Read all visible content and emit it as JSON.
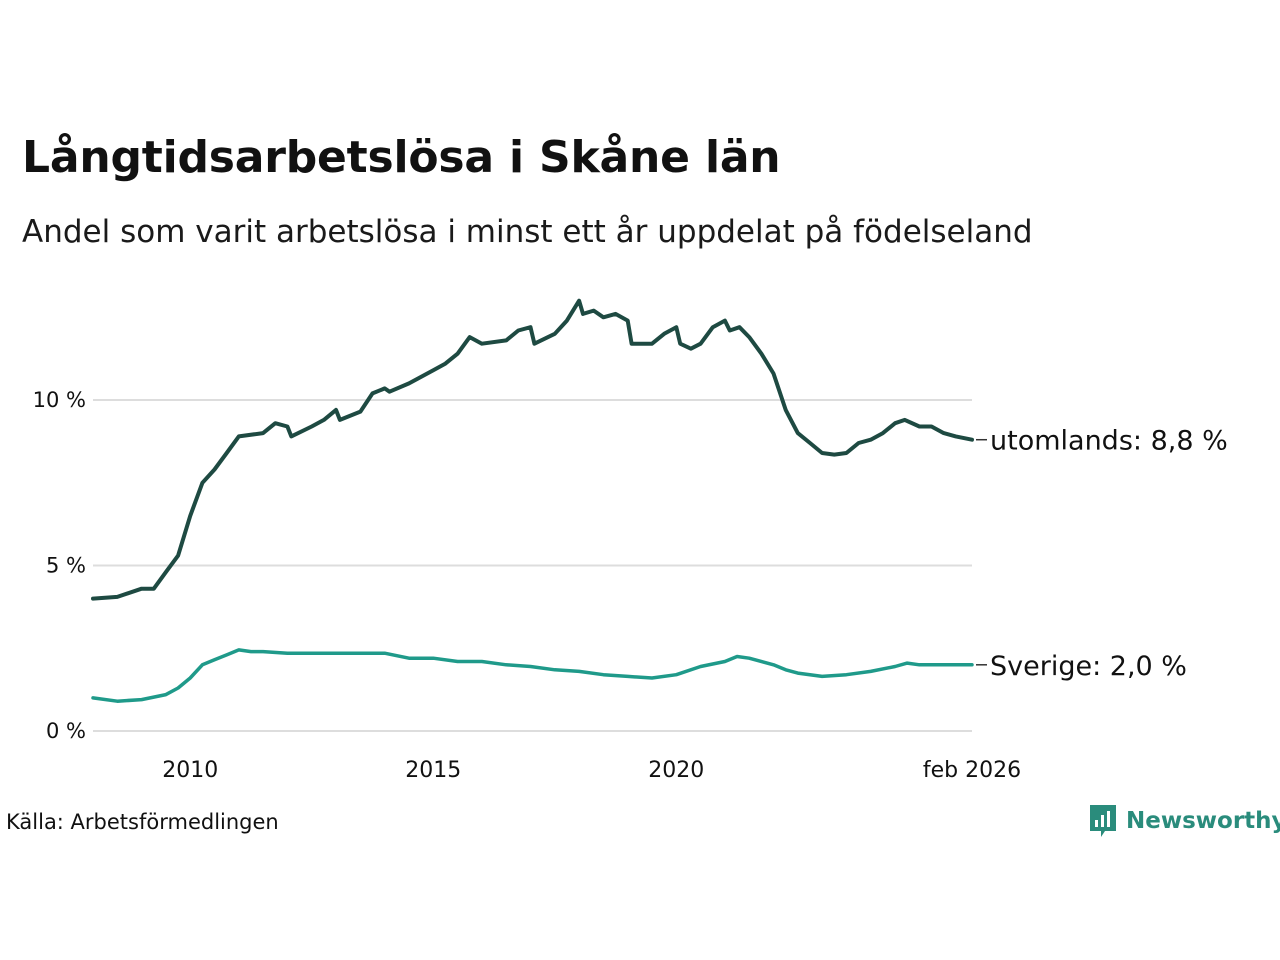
{
  "colors": {
    "abroad": "#1e4a42",
    "sweden": "#1f9a8a",
    "grid": "#dddddd",
    "text": "#111111",
    "brand": "#2a8c7c"
  },
  "icons": {
    "brand": "newsworthy-logo-icon"
  },
  "footer": {
    "source": "Källa: Arbetsförmedlingen",
    "brand": "Newsworthy"
  },
  "chart_data": {
    "type": "line",
    "title": "Långtidsarbetslösa i Skåne län",
    "subtitle": "Andel som varit arbetslösa i minst ett år uppdelat på födelseland",
    "xlabel": "",
    "ylabel": "",
    "x_range": [
      2008.0,
      2026.083
    ],
    "ylim": [
      0,
      13
    ],
    "y_ticks": [
      {
        "value": 0,
        "label": "0 %"
      },
      {
        "value": 5,
        "label": "5 %"
      },
      {
        "value": 10,
        "label": "10 %"
      }
    ],
    "x_ticks": [
      {
        "value": 2010,
        "label": "2010"
      },
      {
        "value": 2015,
        "label": "2015"
      },
      {
        "value": 2020,
        "label": "2020"
      },
      {
        "value": 2026.083,
        "label": "feb 2026"
      }
    ],
    "grid": "horizontal",
    "legend": "direct labels at line ends (right)",
    "series": [
      {
        "name": "utomlands",
        "end_label": "utomlands: 8,8 %",
        "color": "#1e4a42",
        "points": [
          [
            2008.0,
            4.0
          ],
          [
            2008.5,
            4.05
          ],
          [
            2009.0,
            4.3
          ],
          [
            2009.25,
            4.3
          ],
          [
            2009.5,
            4.8
          ],
          [
            2009.75,
            5.3
          ],
          [
            2010.0,
            6.5
          ],
          [
            2010.25,
            7.5
          ],
          [
            2010.5,
            7.9
          ],
          [
            2010.75,
            8.4
          ],
          [
            2011.0,
            8.9
          ],
          [
            2011.5,
            9.0
          ],
          [
            2011.75,
            9.3
          ],
          [
            2012.0,
            9.2
          ],
          [
            2012.08,
            8.9
          ],
          [
            2012.5,
            9.2
          ],
          [
            2012.75,
            9.4
          ],
          [
            2013.0,
            9.7
          ],
          [
            2013.08,
            9.4
          ],
          [
            2013.5,
            9.65
          ],
          [
            2013.75,
            10.2
          ],
          [
            2014.0,
            10.35
          ],
          [
            2014.1,
            10.25
          ],
          [
            2014.5,
            10.5
          ],
          [
            2015.0,
            10.9
          ],
          [
            2015.25,
            11.1
          ],
          [
            2015.5,
            11.4
          ],
          [
            2015.75,
            11.9
          ],
          [
            2016.0,
            11.7
          ],
          [
            2016.5,
            11.8
          ],
          [
            2016.75,
            12.1
          ],
          [
            2017.0,
            12.2
          ],
          [
            2017.08,
            11.7
          ],
          [
            2017.5,
            12.0
          ],
          [
            2017.75,
            12.4
          ],
          [
            2018.0,
            13.0
          ],
          [
            2018.08,
            12.6
          ],
          [
            2018.3,
            12.7
          ],
          [
            2018.5,
            12.5
          ],
          [
            2018.75,
            12.6
          ],
          [
            2019.0,
            12.4
          ],
          [
            2019.08,
            11.7
          ],
          [
            2019.5,
            11.7
          ],
          [
            2019.75,
            12.0
          ],
          [
            2020.0,
            12.2
          ],
          [
            2020.08,
            11.7
          ],
          [
            2020.3,
            11.55
          ],
          [
            2020.5,
            11.7
          ],
          [
            2020.75,
            12.2
          ],
          [
            2021.0,
            12.4
          ],
          [
            2021.1,
            12.1
          ],
          [
            2021.3,
            12.2
          ],
          [
            2021.5,
            11.9
          ],
          [
            2021.75,
            11.4
          ],
          [
            2022.0,
            10.8
          ],
          [
            2022.25,
            9.7
          ],
          [
            2022.5,
            9.0
          ],
          [
            2022.75,
            8.7
          ],
          [
            2023.0,
            8.4
          ],
          [
            2023.25,
            8.35
          ],
          [
            2023.5,
            8.4
          ],
          [
            2023.75,
            8.7
          ],
          [
            2024.0,
            8.8
          ],
          [
            2024.25,
            9.0
          ],
          [
            2024.5,
            9.3
          ],
          [
            2024.7,
            9.4
          ],
          [
            2025.0,
            9.2
          ],
          [
            2025.25,
            9.2
          ],
          [
            2025.5,
            9.0
          ],
          [
            2025.75,
            8.9
          ],
          [
            2026.083,
            8.8
          ]
        ]
      },
      {
        "name": "Sverige",
        "end_label": "Sverige: 2,0 %",
        "color": "#1f9a8a",
        "points": [
          [
            2008.0,
            1.0
          ],
          [
            2008.5,
            0.9
          ],
          [
            2009.0,
            0.95
          ],
          [
            2009.5,
            1.1
          ],
          [
            2009.75,
            1.3
          ],
          [
            2010.0,
            1.6
          ],
          [
            2010.25,
            2.0
          ],
          [
            2010.5,
            2.15
          ],
          [
            2010.75,
            2.3
          ],
          [
            2011.0,
            2.45
          ],
          [
            2011.25,
            2.4
          ],
          [
            2011.5,
            2.4
          ],
          [
            2012.0,
            2.35
          ],
          [
            2012.5,
            2.35
          ],
          [
            2013.0,
            2.35
          ],
          [
            2013.5,
            2.35
          ],
          [
            2014.0,
            2.35
          ],
          [
            2014.5,
            2.2
          ],
          [
            2015.0,
            2.2
          ],
          [
            2015.5,
            2.1
          ],
          [
            2016.0,
            2.1
          ],
          [
            2016.5,
            2.0
          ],
          [
            2017.0,
            1.95
          ],
          [
            2017.5,
            1.85
          ],
          [
            2018.0,
            1.8
          ],
          [
            2018.5,
            1.7
          ],
          [
            2019.0,
            1.65
          ],
          [
            2019.5,
            1.6
          ],
          [
            2020.0,
            1.7
          ],
          [
            2020.5,
            1.95
          ],
          [
            2021.0,
            2.1
          ],
          [
            2021.25,
            2.25
          ],
          [
            2021.5,
            2.2
          ],
          [
            2022.0,
            2.0
          ],
          [
            2022.25,
            1.85
          ],
          [
            2022.5,
            1.75
          ],
          [
            2023.0,
            1.65
          ],
          [
            2023.5,
            1.7
          ],
          [
            2024.0,
            1.8
          ],
          [
            2024.5,
            1.95
          ],
          [
            2024.75,
            2.05
          ],
          [
            2025.0,
            2.0
          ],
          [
            2025.5,
            2.0
          ],
          [
            2026.083,
            2.0
          ]
        ]
      }
    ]
  }
}
